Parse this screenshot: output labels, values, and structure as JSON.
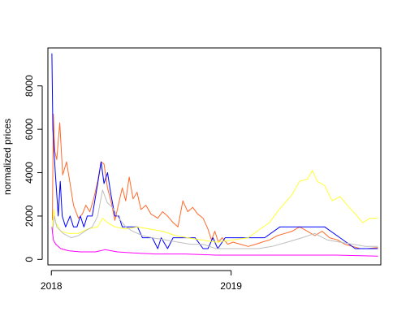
{
  "chart_data": {
    "type": "line",
    "title": "",
    "xlabel": "",
    "ylabel": "normalized prices",
    "x_range": [
      "2017-12-25",
      "2019-11-01"
    ],
    "ylim": [
      -250,
      9750
    ],
    "x_ticks": [
      {
        "label": "2018",
        "date": "2018-01-01"
      },
      {
        "label": "2019",
        "date": "2019-01-01"
      }
    ],
    "y_ticks": [
      0,
      2000,
      4000,
      6000,
      8000
    ],
    "grid": false,
    "legend": "none",
    "series": [
      {
        "color": "#FF6A2A",
        "points": [
          [
            "2018-01-03",
            1800
          ],
          [
            "2018-01-05",
            6700
          ],
          [
            "2018-01-08",
            5000
          ],
          [
            "2018-01-12",
            4600
          ],
          [
            "2018-01-18",
            6300
          ],
          [
            "2018-01-24",
            3900
          ],
          [
            "2018-02-01",
            4500
          ],
          [
            "2018-02-08",
            3500
          ],
          [
            "2018-02-15",
            2500
          ],
          [
            "2018-02-25",
            1900
          ],
          [
            "2018-03-05",
            2100
          ],
          [
            "2018-03-12",
            2500
          ],
          [
            "2018-03-20",
            2200
          ],
          [
            "2018-03-28",
            2800
          ],
          [
            "2018-04-05",
            3600
          ],
          [
            "2018-04-12",
            4500
          ],
          [
            "2018-04-18",
            4400
          ],
          [
            "2018-04-25",
            3300
          ],
          [
            "2018-05-03",
            2600
          ],
          [
            "2018-05-10",
            1800
          ],
          [
            "2018-05-18",
            2600
          ],
          [
            "2018-05-25",
            3300
          ],
          [
            "2018-06-01",
            2700
          ],
          [
            "2018-06-08",
            3800
          ],
          [
            "2018-06-16",
            2800
          ],
          [
            "2018-06-24",
            3100
          ],
          [
            "2018-07-02",
            2300
          ],
          [
            "2018-07-12",
            2500
          ],
          [
            "2018-07-22",
            2100
          ],
          [
            "2018-08-05",
            1900
          ],
          [
            "2018-08-15",
            2200
          ],
          [
            "2018-08-25",
            2000
          ],
          [
            "2018-09-05",
            1700
          ],
          [
            "2018-09-15",
            1500
          ],
          [
            "2018-09-25",
            2700
          ],
          [
            "2018-10-05",
            2200
          ],
          [
            "2018-10-15",
            2400
          ],
          [
            "2018-10-25",
            2100
          ],
          [
            "2018-11-05",
            1900
          ],
          [
            "2018-11-15",
            1400
          ],
          [
            "2018-11-22",
            900
          ],
          [
            "2018-11-29",
            1300
          ],
          [
            "2018-12-06",
            800
          ],
          [
            "2018-12-14",
            1000
          ],
          [
            "2018-12-25",
            700
          ],
          [
            "2019-01-05",
            800
          ],
          [
            "2019-01-20",
            700
          ],
          [
            "2019-02-05",
            600
          ],
          [
            "2019-02-20",
            700
          ],
          [
            "2019-03-05",
            800
          ],
          [
            "2019-03-20",
            900
          ],
          [
            "2019-04-05",
            1100
          ],
          [
            "2019-04-20",
            1200
          ],
          [
            "2019-05-05",
            1300
          ],
          [
            "2019-05-20",
            1500
          ],
          [
            "2019-06-05",
            1300
          ],
          [
            "2019-06-20",
            1100
          ],
          [
            "2019-07-05",
            1300
          ],
          [
            "2019-07-20",
            1000
          ],
          [
            "2019-08-05",
            900
          ],
          [
            "2019-08-20",
            700
          ],
          [
            "2019-09-05",
            600
          ],
          [
            "2019-09-20",
            500
          ],
          [
            "2019-10-05",
            500
          ],
          [
            "2019-10-26",
            550
          ]
        ]
      },
      {
        "color": "#0000FF",
        "points": [
          [
            "2018-01-02",
            9500
          ],
          [
            "2018-01-04",
            6000
          ],
          [
            "2018-01-06",
            5200
          ],
          [
            "2018-01-09",
            4000
          ],
          [
            "2018-01-12",
            3000
          ],
          [
            "2018-01-15",
            2000
          ],
          [
            "2018-01-19",
            3600
          ],
          [
            "2018-01-23",
            2000
          ],
          [
            "2018-01-30",
            1500
          ],
          [
            "2018-02-08",
            2000
          ],
          [
            "2018-02-15",
            1500
          ],
          [
            "2018-02-22",
            1500
          ],
          [
            "2018-03-01",
            2000
          ],
          [
            "2018-03-08",
            1500
          ],
          [
            "2018-03-15",
            2000
          ],
          [
            "2018-03-25",
            2000
          ],
          [
            "2018-04-05",
            3500
          ],
          [
            "2018-04-12",
            4500
          ],
          [
            "2018-04-18",
            3500
          ],
          [
            "2018-04-25",
            4000
          ],
          [
            "2018-05-02",
            3000
          ],
          [
            "2018-05-10",
            2000
          ],
          [
            "2018-05-18",
            2000
          ],
          [
            "2018-05-25",
            1500
          ],
          [
            "2018-06-05",
            1500
          ],
          [
            "2018-06-15",
            1500
          ],
          [
            "2018-06-25",
            1500
          ],
          [
            "2018-07-05",
            1000
          ],
          [
            "2018-07-15",
            1000
          ],
          [
            "2018-07-25",
            1000
          ],
          [
            "2018-08-05",
            500
          ],
          [
            "2018-08-12",
            1000
          ],
          [
            "2018-08-25",
            500
          ],
          [
            "2018-09-05",
            1000
          ],
          [
            "2018-09-20",
            1000
          ],
          [
            "2018-10-05",
            1000
          ],
          [
            "2018-10-20",
            1000
          ],
          [
            "2018-11-05",
            500
          ],
          [
            "2018-11-15",
            500
          ],
          [
            "2018-11-25",
            1000
          ],
          [
            "2018-12-05",
            500
          ],
          [
            "2018-12-20",
            1000
          ],
          [
            "2019-01-10",
            1000
          ],
          [
            "2019-02-10",
            1000
          ],
          [
            "2019-03-10",
            1000
          ],
          [
            "2019-04-10",
            1500
          ],
          [
            "2019-05-10",
            1500
          ],
          [
            "2019-06-10",
            1500
          ],
          [
            "2019-07-10",
            1500
          ],
          [
            "2019-08-10",
            1000
          ],
          [
            "2019-09-10",
            500
          ],
          [
            "2019-10-26",
            500
          ]
        ]
      },
      {
        "color": "#FFFF33",
        "points": [
          [
            "2018-01-03",
            1500
          ],
          [
            "2018-01-06",
            2300
          ],
          [
            "2018-01-10",
            1700
          ],
          [
            "2018-01-20",
            1300
          ],
          [
            "2018-02-05",
            1200
          ],
          [
            "2018-02-25",
            1200
          ],
          [
            "2018-03-15",
            1400
          ],
          [
            "2018-04-05",
            1500
          ],
          [
            "2018-04-15",
            1900
          ],
          [
            "2018-04-25",
            1700
          ],
          [
            "2018-05-10",
            1500
          ],
          [
            "2018-06-01",
            1400
          ],
          [
            "2018-06-25",
            1500
          ],
          [
            "2018-07-20",
            1400
          ],
          [
            "2018-08-15",
            1300
          ],
          [
            "2018-09-10",
            1100
          ],
          [
            "2018-10-05",
            1000
          ],
          [
            "2018-11-01",
            900
          ],
          [
            "2018-12-01",
            800
          ],
          [
            "2019-01-05",
            900
          ],
          [
            "2019-02-05",
            1000
          ],
          [
            "2019-03-01",
            1400
          ],
          [
            "2019-03-20",
            1700
          ],
          [
            "2019-04-05",
            2200
          ],
          [
            "2019-04-20",
            2600
          ],
          [
            "2019-05-05",
            3000
          ],
          [
            "2019-05-20",
            3600
          ],
          [
            "2019-06-05",
            3700
          ],
          [
            "2019-06-15",
            4100
          ],
          [
            "2019-06-25",
            3600
          ],
          [
            "2019-07-10",
            3400
          ],
          [
            "2019-07-25",
            2700
          ],
          [
            "2019-08-10",
            2900
          ],
          [
            "2019-08-25",
            2500
          ],
          [
            "2019-09-10",
            2100
          ],
          [
            "2019-09-25",
            1700
          ],
          [
            "2019-10-10",
            1900
          ],
          [
            "2019-10-26",
            1900
          ]
        ]
      },
      {
        "color": "#BEBEBE",
        "points": [
          [
            "2018-01-03",
            1200
          ],
          [
            "2018-01-07",
            2000
          ],
          [
            "2018-01-12",
            1500
          ],
          [
            "2018-01-25",
            1200
          ],
          [
            "2018-02-10",
            1000
          ],
          [
            "2018-02-25",
            1100
          ],
          [
            "2018-03-10",
            1300
          ],
          [
            "2018-03-25",
            1500
          ],
          [
            "2018-04-05",
            2000
          ],
          [
            "2018-04-15",
            3200
          ],
          [
            "2018-04-25",
            2600
          ],
          [
            "2018-05-05",
            2400
          ],
          [
            "2018-05-15",
            2000
          ],
          [
            "2018-06-01",
            1500
          ],
          [
            "2018-06-15",
            1300
          ],
          [
            "2018-07-05",
            1100
          ],
          [
            "2018-07-25",
            1000
          ],
          [
            "2018-08-20",
            900
          ],
          [
            "2018-09-15",
            800
          ],
          [
            "2018-10-10",
            700
          ],
          [
            "2018-11-05",
            700
          ],
          [
            "2018-12-01",
            500
          ],
          [
            "2018-12-25",
            500
          ],
          [
            "2019-01-25",
            500
          ],
          [
            "2019-02-25",
            500
          ],
          [
            "2019-03-25",
            600
          ],
          [
            "2019-04-25",
            800
          ],
          [
            "2019-05-25",
            1000
          ],
          [
            "2019-06-20",
            1200
          ],
          [
            "2019-07-15",
            900
          ],
          [
            "2019-08-10",
            800
          ],
          [
            "2019-09-05",
            700
          ],
          [
            "2019-10-01",
            600
          ],
          [
            "2019-10-26",
            600
          ]
        ]
      },
      {
        "color": "#FF00FF",
        "points": [
          [
            "2018-01-02",
            1500
          ],
          [
            "2018-01-05",
            900
          ],
          [
            "2018-01-10",
            700
          ],
          [
            "2018-01-20",
            500
          ],
          [
            "2018-02-05",
            400
          ],
          [
            "2018-03-01",
            350
          ],
          [
            "2018-04-01",
            350
          ],
          [
            "2018-04-20",
            450
          ],
          [
            "2018-05-15",
            350
          ],
          [
            "2018-06-15",
            300
          ],
          [
            "2018-08-01",
            250
          ],
          [
            "2018-10-01",
            250
          ],
          [
            "2018-12-01",
            200
          ],
          [
            "2019-02-01",
            200
          ],
          [
            "2019-05-01",
            200
          ],
          [
            "2019-08-01",
            200
          ],
          [
            "2019-10-26",
            150
          ]
        ]
      }
    ]
  }
}
